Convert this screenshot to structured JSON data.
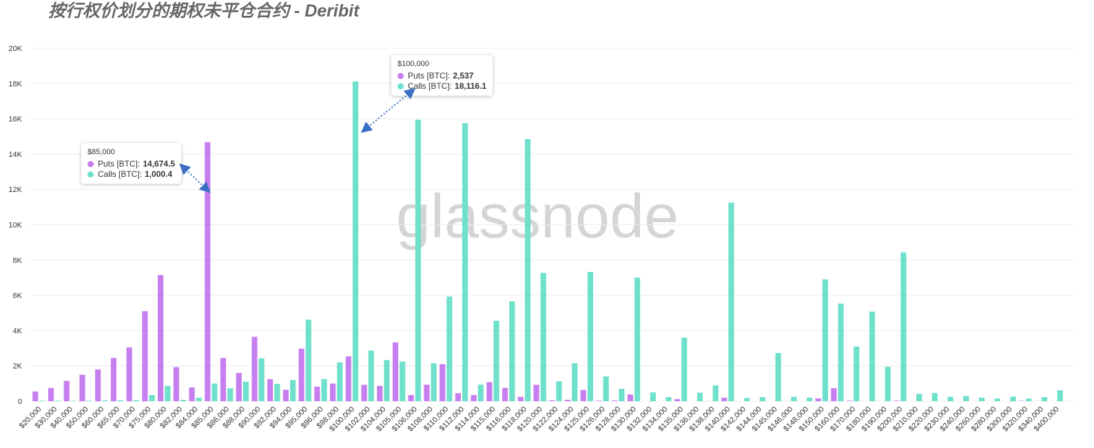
{
  "chart_data": {
    "type": "bar",
    "title": "按行权价划分的期权未平仓合约 - Deribit",
    "watermark": "glassnode",
    "categories": [
      "$20,000",
      "$30,000",
      "$40,000",
      "$50,000",
      "$60,000",
      "$65,000",
      "$70,000",
      "$75,000",
      "$80,000",
      "$82,000",
      "$84,000",
      "$85,000",
      "$86,000",
      "$88,000",
      "$90,000",
      "$92,000",
      "$94,000",
      "$95,000",
      "$96,000",
      "$98,000",
      "$100,000",
      "$102,000",
      "$104,000",
      "$105,000",
      "$106,000",
      "$108,000",
      "$110,000",
      "$112,000",
      "$114,000",
      "$115,000",
      "$116,000",
      "$118,000",
      "$120,000",
      "$122,000",
      "$124,000",
      "$125,000",
      "$126,000",
      "$128,000",
      "$130,000",
      "$132,000",
      "$134,000",
      "$135,000",
      "$136,000",
      "$138,000",
      "$140,000",
      "$142,000",
      "$144,000",
      "$145,000",
      "$146,000",
      "$148,000",
      "$150,000",
      "$160,000",
      "$170,000",
      "$180,000",
      "$190,000",
      "$200,000",
      "$210,000",
      "$220,000",
      "$230,000",
      "$240,000",
      "$260,000",
      "$280,000",
      "$300,000",
      "$320,000",
      "$340,000",
      "$400,000"
    ],
    "series": [
      {
        "name": "Puts [BTC]",
        "color": "#c77ff0",
        "values": [
          550,
          750,
          1150,
          1500,
          1800,
          2450,
          3050,
          5100,
          7150,
          1930,
          780,
          14674.5,
          2450,
          1600,
          3650,
          1250,
          650,
          2980,
          820,
          1000,
          2537,
          930,
          870,
          3330,
          350,
          940,
          2100,
          450,
          350,
          1080,
          760,
          250,
          930,
          50,
          80,
          640,
          30,
          40,
          380,
          0,
          0,
          120,
          0,
          0,
          200,
          0,
          0,
          0,
          0,
          0,
          160,
          740,
          30,
          0,
          0,
          30,
          0,
          0,
          0,
          0,
          0,
          0,
          0,
          20,
          0,
          0
        ]
      },
      {
        "name": "Calls [BTC]",
        "color": "#6ee0cc",
        "values": [
          30,
          30,
          20,
          30,
          50,
          50,
          60,
          350,
          870,
          80,
          200,
          1000.4,
          730,
          1100,
          2430,
          980,
          1200,
          4620,
          1260,
          2200,
          18116.1,
          2870,
          2330,
          2250,
          15950,
          2150,
          5930,
          15750,
          940,
          4560,
          5650,
          14850,
          7270,
          1130,
          2150,
          7320,
          1400,
          700,
          7000,
          500,
          230,
          3600,
          480,
          900,
          11250,
          180,
          230,
          2730,
          250,
          200,
          6900,
          5530,
          3100,
          5080,
          1950,
          8430,
          420,
          460,
          250,
          300,
          200,
          150,
          260,
          150,
          230,
          620
        ]
      }
    ],
    "ylim": [
      0,
      20000
    ],
    "yticks": [
      0,
      {
        "value": 2000,
        "label": "2K"
      },
      {
        "value": 4000,
        "label": "4K"
      },
      {
        "value": 6000,
        "label": "6K"
      },
      {
        "value": 8000,
        "label": "8K"
      },
      {
        "value": 10000,
        "label": "10K"
      },
      {
        "value": 12000,
        "label": "12K"
      },
      {
        "value": 14000,
        "label": "14K"
      },
      {
        "value": 16000,
        "label": "16K"
      },
      {
        "value": 18000,
        "label": "18K"
      },
      {
        "value": 20000,
        "label": "20K"
      }
    ],
    "grid": true,
    "tooltips": [
      {
        "category": 11,
        "title": "$85,000",
        "value_labels": [
          "14,674.5",
          "1,000.4"
        ]
      },
      {
        "category": 20,
        "title": "$100,000",
        "value_labels": [
          "2,537",
          "18,116.1"
        ]
      }
    ]
  }
}
